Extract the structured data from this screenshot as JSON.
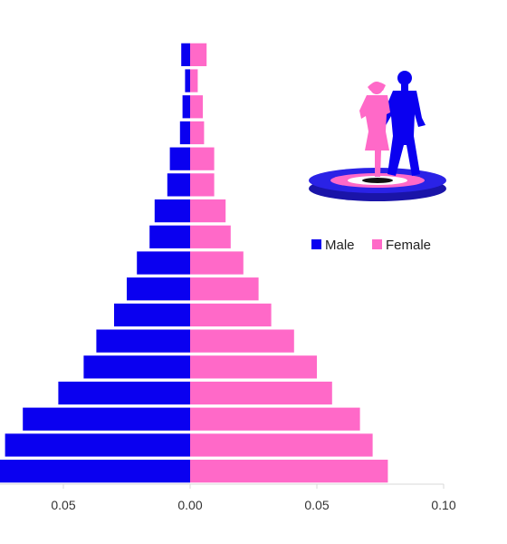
{
  "chart_data": {
    "type": "bar",
    "orientation": "horizontal",
    "layout": "population-pyramid",
    "series": [
      {
        "name": "Male",
        "color": "#0a00f0",
        "values": [
          0.075,
          0.073,
          0.066,
          0.052,
          0.042,
          0.037,
          0.03,
          0.025,
          0.021,
          0.016,
          0.014,
          0.009,
          0.008,
          0.004,
          0.003,
          0.002,
          0.0035
        ]
      },
      {
        "name": "Female",
        "color": "#ff69c8",
        "values": [
          0.078,
          0.072,
          0.067,
          0.056,
          0.05,
          0.041,
          0.032,
          0.027,
          0.021,
          0.016,
          0.014,
          0.0095,
          0.0095,
          0.0055,
          0.005,
          0.003,
          0.0065
        ]
      }
    ],
    "x_ticks": [
      {
        "value": -0.05,
        "label": "0.05"
      },
      {
        "value": 0.0,
        "label": "0.00"
      },
      {
        "value": 0.05,
        "label": "0.05"
      },
      {
        "value": 0.1,
        "label": "0.10"
      }
    ],
    "xlim": [
      -0.075,
      0.1
    ],
    "legend": {
      "placement": "right",
      "entries": [
        "Male",
        "Female"
      ]
    },
    "grid": false,
    "decoration": "couple-silhouette-on-platform-icon"
  }
}
